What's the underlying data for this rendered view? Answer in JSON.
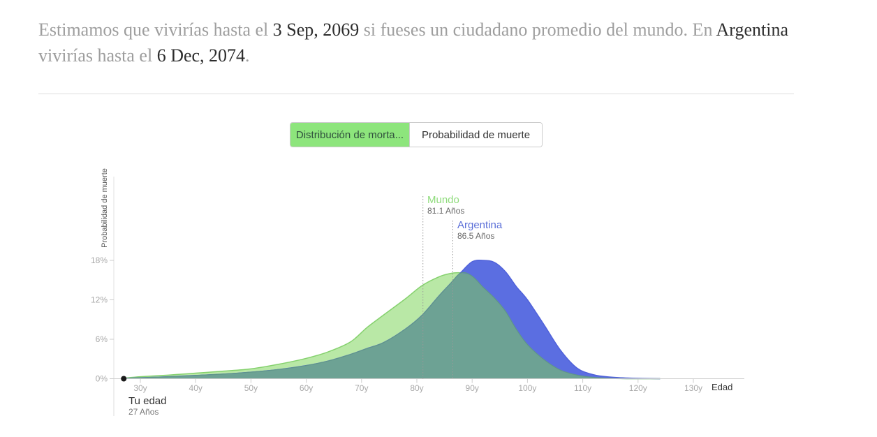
{
  "header": {
    "segments": [
      {
        "text": "Estimamos que vivirías hasta el ",
        "emphasis": false
      },
      {
        "text": "3 Sep, 2069",
        "emphasis": true
      },
      {
        "text": " si fueses un ciudadano promedio del mundo. En ",
        "emphasis": false
      },
      {
        "text": "Argentina",
        "emphasis": true
      },
      {
        "text": " vivirías hasta el ",
        "emphasis": false
      },
      {
        "text": "6 Dec, 2074",
        "emphasis": true
      },
      {
        "text": ".",
        "emphasis": false
      }
    ]
  },
  "tabs": [
    {
      "label": "Distribución de morta...",
      "active": true
    },
    {
      "label": "Probabilidad de muerte",
      "active": false
    }
  ],
  "colors": {
    "tab_active_bg": "#8de57c",
    "mundo_fill": "#b9e8a6",
    "mundo_stroke": "#85d16e",
    "mundo_label": "#8fdc7c",
    "argentina_fill": "#5b6ee1",
    "argentina_stroke": "#5062da",
    "argentina_label": "#5b6fd8",
    "overlap_fill": "#6da294",
    "overlap_stroke": "#5f9589",
    "axis_line": "#cfcfcf",
    "tick_label": "#a8a8a8",
    "mean_line": "#999999",
    "user_dot": "#1a1a1a"
  },
  "chart_data": {
    "type": "area",
    "title": "",
    "xlabel": "Edad",
    "ylabel": "Probabilidad de muerte",
    "xlim": [
      25,
      133
    ],
    "ylim": [
      0,
      19
    ],
    "x_ticks": [
      {
        "label": "30y",
        "value": 30
      },
      {
        "label": "40y",
        "value": 40
      },
      {
        "label": "50y",
        "value": 50
      },
      {
        "label": "60y",
        "value": 60
      },
      {
        "label": "70y",
        "value": 70
      },
      {
        "label": "80y",
        "value": 80
      },
      {
        "label": "90y",
        "value": 90
      },
      {
        "label": "100y",
        "value": 100
      },
      {
        "label": "110y",
        "value": 110
      },
      {
        "label": "120y",
        "value": 120
      },
      {
        "label": "130y",
        "value": 130
      }
    ],
    "y_ticks": [
      {
        "label": "0%",
        "value": 0
      },
      {
        "label": "6%",
        "value": 6
      },
      {
        "label": "12%",
        "value": 12
      },
      {
        "label": "18%",
        "value": 18
      }
    ],
    "x": [
      27,
      30,
      35,
      40,
      45,
      50,
      55,
      60,
      64,
      68,
      71,
      74,
      78,
      81,
      84,
      86,
      88,
      90,
      92,
      94,
      96,
      98,
      100,
      103,
      106,
      109,
      112,
      115,
      118,
      121,
      124
    ],
    "series": [
      {
        "name": "Mundo",
        "mean_age": 81.1,
        "mean_label": "81.1 Años",
        "values": [
          0.08,
          0.3,
          0.55,
          0.85,
          1.15,
          1.5,
          2.2,
          3.1,
          4.1,
          5.6,
          7.8,
          9.7,
          12.2,
          14.2,
          15.5,
          16.0,
          16.1,
          15.6,
          13.9,
          12.3,
          10.3,
          7.5,
          5.2,
          2.9,
          1.3,
          0.55,
          0.2,
          0.05,
          0,
          0,
          0
        ]
      },
      {
        "name": "Argentina",
        "mean_age": 86.5,
        "mean_label": "86.5 Años",
        "values": [
          0.04,
          0.15,
          0.3,
          0.5,
          0.7,
          1.0,
          1.4,
          2.0,
          2.7,
          3.7,
          4.6,
          5.5,
          7.6,
          9.7,
          12.6,
          14.4,
          16.2,
          17.8,
          18.0,
          17.7,
          16.3,
          14.0,
          12.0,
          8.2,
          4.3,
          1.6,
          0.6,
          0.25,
          0.1,
          0.04,
          0
        ]
      }
    ],
    "user_marker": {
      "label": "Tu edad",
      "sublabel": "27 Años",
      "age": 27,
      "value": 0
    }
  }
}
